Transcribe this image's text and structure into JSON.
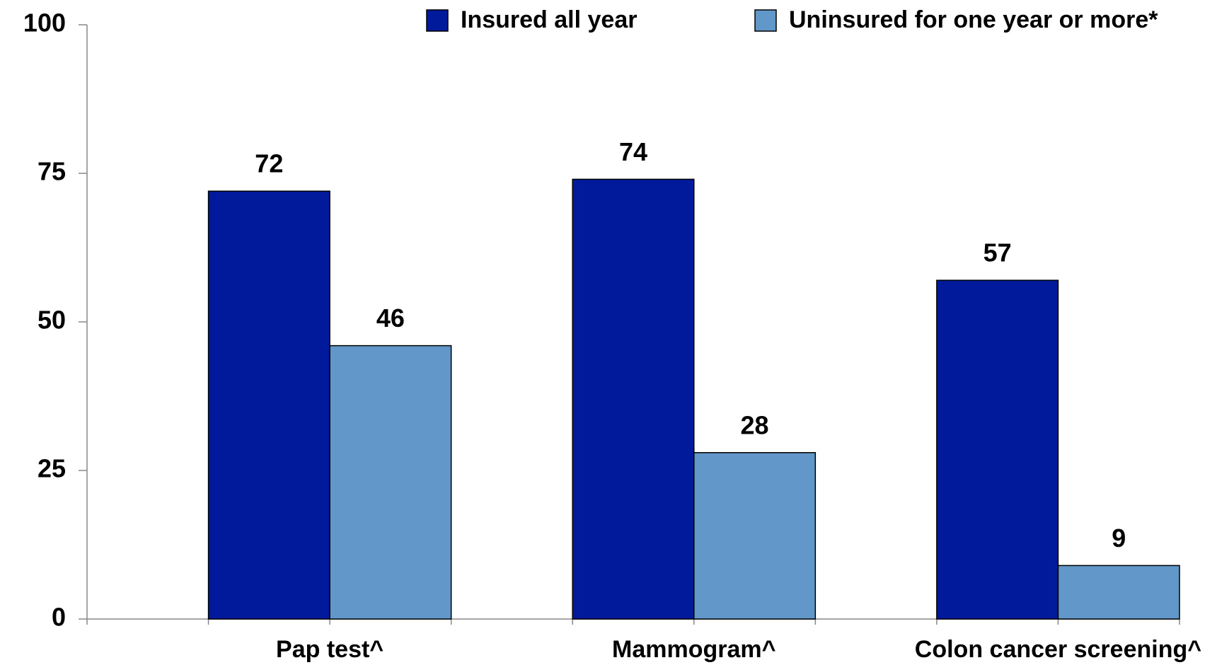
{
  "chart_data": {
    "type": "bar",
    "categories": [
      "Pap test^",
      "Mammogram^",
      "Colon cancer screening^"
    ],
    "series": [
      {
        "name": "Insured all year",
        "color": "#001a9c",
        "values": [
          72,
          74,
          57
        ]
      },
      {
        "name": "Uninsured for one year or more*",
        "color": "#6198c9",
        "values": [
          46,
          28,
          9
        ]
      }
    ],
    "ylim": [
      0,
      100
    ],
    "yticks": [
      0,
      25,
      50,
      75,
      100
    ],
    "grid": false,
    "legend": "top"
  }
}
